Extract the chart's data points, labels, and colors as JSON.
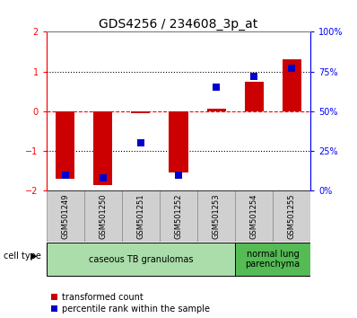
{
  "title": "GDS4256 / 234608_3p_at",
  "samples": [
    "GSM501249",
    "GSM501250",
    "GSM501251",
    "GSM501252",
    "GSM501253",
    "GSM501254",
    "GSM501255"
  ],
  "red_values": [
    -1.7,
    -1.85,
    -0.05,
    -1.55,
    0.07,
    0.75,
    1.3
  ],
  "blue_values": [
    10,
    8,
    30,
    10,
    65,
    72,
    77
  ],
  "ylim_left": [
    -2,
    2
  ],
  "ylim_right": [
    0,
    100
  ],
  "yticks_left": [
    -2,
    -1,
    0,
    1,
    2
  ],
  "yticks_right": [
    0,
    25,
    50,
    75,
    100
  ],
  "ytick_labels_right": [
    "0%",
    "25%",
    "50%",
    "75%",
    "100%"
  ],
  "bar_color": "#cc0000",
  "dot_color": "#0000cc",
  "bg_color": "#ffffff",
  "plot_bg": "#ffffff",
  "cell_type_groups": [
    {
      "label": "caseous TB granulomas",
      "start": 0,
      "end": 4,
      "color": "#aaddaa"
    },
    {
      "label": "normal lung\nparenchyma",
      "start": 5,
      "end": 6,
      "color": "#55bb55"
    }
  ],
  "legend_items": [
    {
      "label": "transformed count",
      "color": "#cc0000"
    },
    {
      "label": "percentile rank within the sample",
      "color": "#0000cc"
    }
  ],
  "bar_width": 0.5,
  "dot_size": 40,
  "title_fontsize": 10,
  "tick_fontsize": 7,
  "sample_fontsize": 6,
  "cell_fontsize": 7,
  "legend_fontsize": 7,
  "cell_type_label": "cell type"
}
